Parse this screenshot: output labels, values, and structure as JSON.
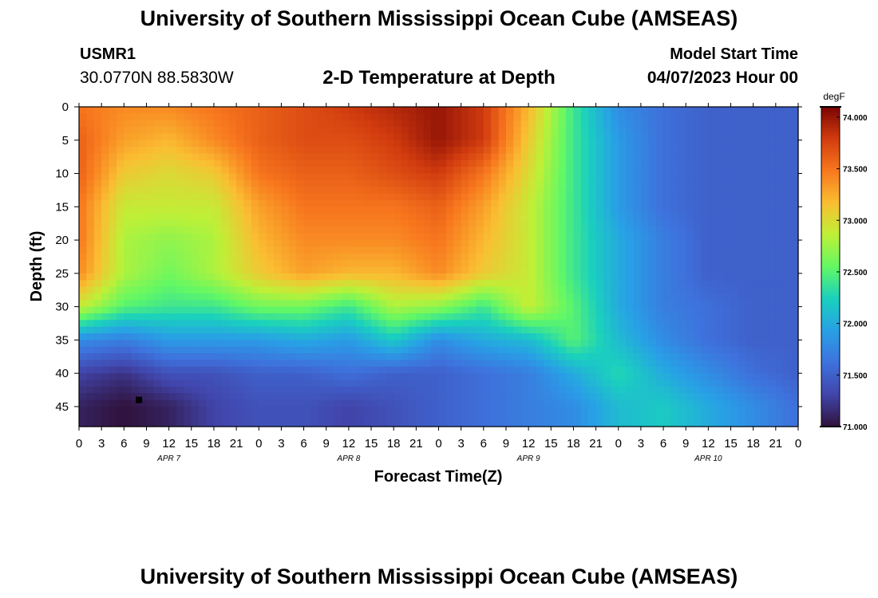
{
  "header": {
    "title": "University of Southern Mississippi Ocean Cube (AMSEAS)",
    "station_id": "USMR1",
    "station_coords": "30.0770N  88.5830W",
    "plot_title": "2-D Temperature at Depth",
    "model_start_label": "Model Start Time",
    "model_start_value": "04/07/2023 Hour 00"
  },
  "footer": {
    "title": "University of Southern Mississippi Ocean Cube (AMSEAS)"
  },
  "chart_data": {
    "type": "heatmap",
    "title": "2-D Temperature at Depth",
    "xlabel": "Forecast Time(Z)",
    "ylabel": "Depth (ft)",
    "units": "degF",
    "x_range_hours": [
      0,
      96
    ],
    "x_tick_step_hours": 3,
    "x_tick_labels": [
      "0",
      "3",
      "6",
      "9",
      "12",
      "15",
      "18",
      "21",
      "0",
      "3",
      "6",
      "9",
      "12",
      "15",
      "18",
      "21",
      "0",
      "3",
      "6",
      "9",
      "12",
      "15",
      "18",
      "21",
      "0",
      "3",
      "6",
      "9",
      "12",
      "15",
      "18",
      "21",
      "0"
    ],
    "day_labels": [
      {
        "label": "APR 7",
        "hour": 12
      },
      {
        "label": "APR 8",
        "hour": 36
      },
      {
        "label": "APR 9",
        "hour": 60
      },
      {
        "label": "APR 10",
        "hour": 84
      }
    ],
    "y_range_ft": [
      0,
      48
    ],
    "y_ticks": [
      0,
      5,
      10,
      15,
      20,
      25,
      30,
      35,
      40,
      45
    ],
    "colorbar": {
      "min": 71.0,
      "max": 74.1,
      "tick_values": [
        71.0,
        71.5,
        72.0,
        72.5,
        73.0,
        73.5,
        74.0
      ],
      "tick_labels": [
        "71.000",
        "71.500",
        "72.000",
        "72.500",
        "73.000",
        "73.500",
        "74.000"
      ]
    },
    "marker": {
      "hour": 8,
      "depth_ft": 44
    },
    "grid_hours": [
      0,
      6,
      12,
      18,
      24,
      30,
      36,
      42,
      48,
      54,
      60,
      66,
      72,
      78,
      84,
      90,
      96
    ],
    "grid_depths_ft": [
      0,
      5,
      10,
      15,
      20,
      25,
      30,
      35,
      40,
      45
    ],
    "temperature_degF": [
      [
        73.5,
        73.4,
        73.4,
        73.5,
        73.6,
        73.7,
        73.8,
        73.9,
        74.0,
        73.8,
        73.2,
        72.4,
        71.8,
        71.6,
        71.5,
        71.5,
        71.5
      ],
      [
        73.6,
        73.3,
        73.2,
        73.4,
        73.6,
        73.7,
        73.7,
        73.8,
        74.0,
        73.8,
        73.1,
        72.4,
        71.9,
        71.6,
        71.5,
        71.5,
        71.5
      ],
      [
        73.6,
        73.1,
        73.0,
        73.1,
        73.5,
        73.6,
        73.6,
        73.7,
        73.8,
        73.5,
        73.0,
        72.4,
        71.9,
        71.6,
        71.5,
        71.5,
        71.5
      ],
      [
        73.5,
        72.9,
        72.9,
        72.9,
        73.3,
        73.5,
        73.5,
        73.5,
        73.6,
        73.3,
        72.9,
        72.4,
        71.9,
        71.6,
        71.5,
        71.5,
        71.5
      ],
      [
        73.5,
        72.8,
        72.7,
        72.8,
        73.2,
        73.4,
        73.4,
        73.4,
        73.5,
        73.2,
        72.9,
        72.4,
        72.0,
        71.7,
        71.5,
        71.5,
        71.5
      ],
      [
        73.4,
        72.8,
        72.6,
        72.8,
        73.1,
        73.3,
        73.2,
        73.2,
        73.4,
        73.1,
        72.9,
        72.4,
        72.0,
        71.7,
        71.5,
        71.5,
        71.5
      ],
      [
        72.9,
        72.5,
        72.4,
        72.4,
        72.6,
        72.6,
        72.4,
        72.8,
        72.7,
        72.4,
        72.9,
        72.5,
        72.0,
        71.7,
        71.6,
        71.5,
        71.5
      ],
      [
        71.8,
        71.7,
        71.9,
        71.9,
        71.9,
        72.0,
        71.9,
        72.2,
        71.8,
        72.0,
        72.1,
        72.5,
        72.1,
        71.8,
        71.6,
        71.5,
        71.5
      ],
      [
        71.3,
        71.2,
        71.4,
        71.4,
        71.5,
        71.5,
        71.6,
        71.5,
        71.5,
        71.6,
        71.7,
        72.0,
        72.3,
        72.0,
        71.8,
        71.6,
        71.5
      ],
      [
        71.1,
        71.0,
        71.1,
        71.3,
        71.4,
        71.4,
        71.3,
        71.4,
        71.5,
        71.6,
        71.7,
        71.8,
        72.1,
        72.2,
        72.0,
        71.8,
        71.6
      ]
    ]
  }
}
